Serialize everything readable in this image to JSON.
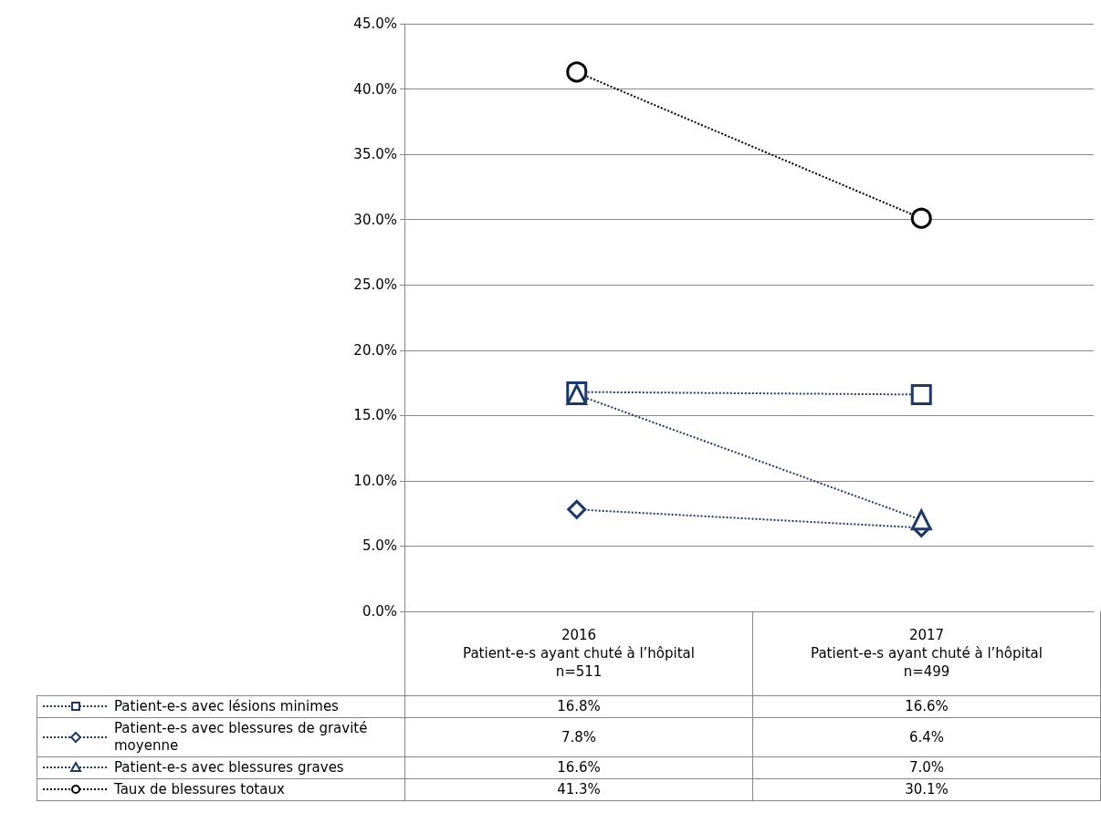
{
  "chart_data": {
    "type": "line",
    "categories": [
      "2016\nPatient-e-s ayant chuté à l’hôpital\nn=511",
      "2017\nPatient-e-s ayant chuté à l’hôpital\nn=499"
    ],
    "series": [
      {
        "name": "Patient-e-s avec lésions minimes",
        "color": "#1f3864",
        "marker": "square",
        "values": [
          16.8,
          16.6
        ],
        "value_labels": [
          "16.8%",
          "16.6%"
        ]
      },
      {
        "name": "Patient-e-s avec blessures de gravité moyenne",
        "color": "#1f3864",
        "marker": "diamond",
        "values": [
          7.8,
          6.4
        ],
        "value_labels": [
          "7.8%",
          "6.4%"
        ]
      },
      {
        "name": "Patient-e-s avec blessures graves",
        "color": "#1f3864",
        "marker": "triangle",
        "values": [
          16.6,
          7.0
        ],
        "value_labels": [
          "16.6%",
          "7.0%"
        ]
      },
      {
        "name": "Taux de blessures totaux",
        "color": "#000000",
        "marker": "circle",
        "values": [
          41.3,
          30.1
        ],
        "value_labels": [
          "41.3%",
          "30.1%"
        ]
      }
    ],
    "ylim": [
      0,
      45
    ],
    "yticks": [
      {
        "value": 0,
        "label": "0.0%"
      },
      {
        "value": 5,
        "label": "5.0%"
      },
      {
        "value": 10,
        "label": "10.0%"
      },
      {
        "value": 15,
        "label": "15.0%"
      },
      {
        "value": 20,
        "label": "20.0%"
      },
      {
        "value": 25,
        "label": "25.0%"
      },
      {
        "value": 30,
        "label": "30.0%"
      },
      {
        "value": 35,
        "label": "35.0%"
      },
      {
        "value": 40,
        "label": "40.0%"
      },
      {
        "value": 45,
        "label": "45.0%"
      }
    ],
    "grid": "y",
    "legend": "bottom",
    "line_style": "dotted",
    "data_labels": true
  }
}
